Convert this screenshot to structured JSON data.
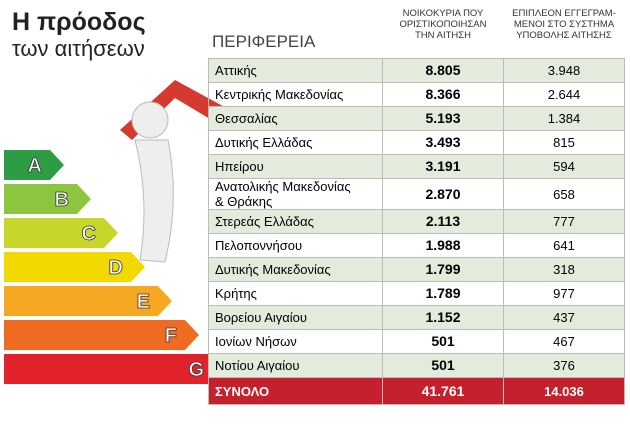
{
  "header": {
    "title": "Η πρόοδος",
    "subtitle": "των αιτήσεων"
  },
  "energy_labels": [
    "A",
    "B",
    "C",
    "D",
    "E",
    "F",
    "G"
  ],
  "table": {
    "columns": [
      "ΠΕΡΙΦΕΡΕΙΑ",
      "ΝΟΙΚΟΚΥΡΙΑ ΠΟΥ\nΟΡΙΣΤΙΚΟΠΟΙΗΣΑΝ\nΤΗΝ ΑΙΤΗΣΗ",
      "ΕΠΙΠΛΕΟΝ ΕΓΓΕΓΡΑΜ-\nΜΕΝΟΙ ΣΤΟ ΣΥΣΤΗΜΑ\nΥΠΟΒΟΛΗΣ ΑΙΤΗΣΗΣ"
    ],
    "rows": [
      [
        "Αττικής",
        "8.805",
        "3.948"
      ],
      [
        "Κεντρικής Μακεδονίας",
        "8.366",
        "2.644"
      ],
      [
        "Θεσσαλίας",
        "5.193",
        "1.384"
      ],
      [
        "Δυτικής Ελλάδας",
        "3.493",
        "815"
      ],
      [
        "Ηπείρου",
        "3.191",
        "594"
      ],
      [
        "Ανατολικής Μακεδονίας\n& Θράκης",
        "2.870",
        "658"
      ],
      [
        "Στερεάς Ελλάδας",
        "2.113",
        "777"
      ],
      [
        "Πελοποννήσου",
        "1.988",
        "641"
      ],
      [
        "Δυτικής Μακεδονίας",
        "1.799",
        "318"
      ],
      [
        "Κρήτης",
        "1.789",
        "977"
      ],
      [
        "Βορείου Αιγαίου",
        "1.152",
        "437"
      ],
      [
        "Ιονίων Νήσων",
        "501",
        "467"
      ],
      [
        "Νοτίου Αιγαίου",
        "501",
        "376"
      ]
    ],
    "total": [
      "ΣΥΝΟΛΟ",
      "41.761",
      "14.036"
    ]
  }
}
